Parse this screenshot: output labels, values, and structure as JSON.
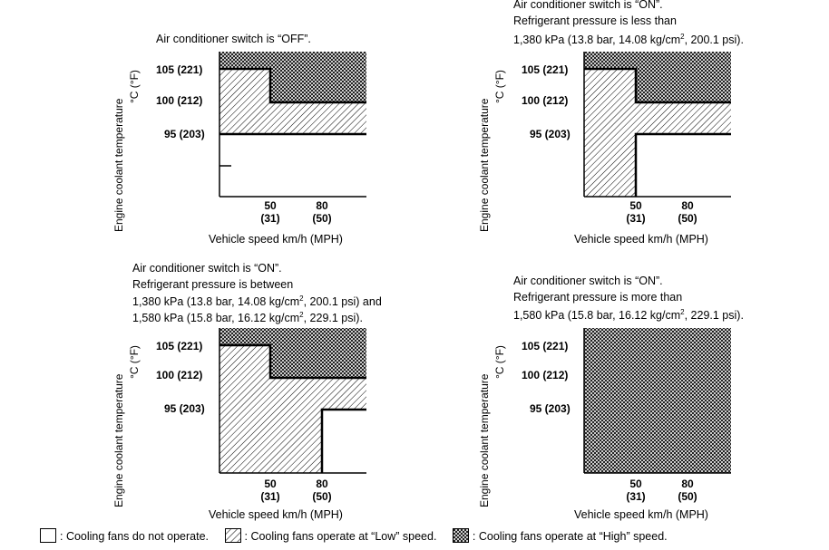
{
  "axis": {
    "y_label_line1": "Engine coolant temperature",
    "y_label_line2": "°C (°F)",
    "y_ticks": [
      "105 (221)",
      "100 (212)",
      "95 (203)"
    ],
    "x_ticks": [
      {
        "top": "50",
        "bottom": "(31)"
      },
      {
        "top": "80",
        "bottom": "(50)"
      }
    ],
    "x_label": "Vehicle speed km/h (MPH)"
  },
  "panels": [
    {
      "id": "ac-off",
      "title_lines": [
        "Air conditioner switch is “OFF”."
      ]
    },
    {
      "id": "ac-on-low-pressure",
      "title_lines": [
        "Air conditioner switch is “ON”.",
        "Refrigerant pressure is less than",
        "1,380 kPa (13.8 bar, 14.08 kg/cm",
        "2",
        ", 200.1 psi)."
      ]
    },
    {
      "id": "ac-on-mid-pressure",
      "title_lines": [
        "Air conditioner switch is “ON”.",
        "Refrigerant pressure is between",
        "1,380 kPa (13.8 bar, 14.08 kg/cm",
        "2",
        ", 200.1 psi) and",
        "1,580 kPa (15.8 bar, 16.12 kg/cm",
        "2",
        ", 229.1 psi)."
      ]
    },
    {
      "id": "ac-on-high-pressure",
      "title_lines": [
        "Air conditioner switch is “ON”.",
        "Refrigerant pressure is more than",
        "1,580 kPa (15.8 bar, 16.12 kg/cm",
        "2",
        ", 229.1 psi)."
      ]
    }
  ],
  "legend": {
    "off": ": Cooling fans do not operate.",
    "low": ": Cooling fans operate at “Low” speed.",
    "high": ": Cooling fans operate at “High” speed."
  }
}
